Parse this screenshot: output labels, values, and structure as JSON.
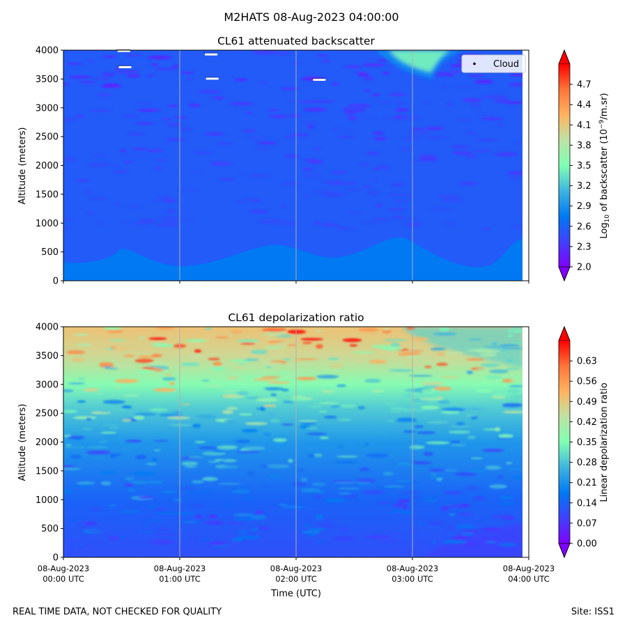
{
  "suptitle": "M2HATS 08-Aug-2023 04:00:00",
  "footer": {
    "left": "REAL TIME DATA, NOT CHECKED FOR QUALITY",
    "right": "Site: ISS1"
  },
  "chart_data": [
    {
      "type": "heatmap",
      "title": "CL61 attenuated backscatter",
      "xlabel": "",
      "ylabel": "Altitude (meters)",
      "ylim": [
        0,
        4000
      ],
      "yticks": [
        "0",
        "500",
        "1000",
        "1500",
        "2000",
        "2500",
        "3000",
        "3500",
        "4000"
      ],
      "x_hours_range": [
        0,
        4
      ],
      "grid_x_hours": [
        1,
        2,
        3
      ],
      "legend": {
        "label": "Cloud",
        "placement": "top-right"
      },
      "colorbar": {
        "label_prefix": "Log",
        "label_sub": "10",
        "label_mid": " of backscatter (10",
        "label_sup": "−9",
        "label_suffix": "/m.sr)",
        "range": [
          2.0,
          5.0
        ],
        "ticks": [
          "2.0",
          "2.3",
          "2.6",
          "2.9",
          "3.2",
          "3.5",
          "3.8",
          "4.1",
          "4.4",
          "4.7"
        ]
      },
      "background_value": 2.55,
      "surface_layer": {
        "value": 2.75,
        "top_altitude_m": 500
      },
      "features": [
        {
          "kind": "high_backscatter_plume",
          "t_start_h": 2.8,
          "t_end_h": 3.2,
          "alt_bottom_m": 3500,
          "alt_top_m": 4000,
          "value": 3.4
        },
        {
          "kind": "cloud_mask",
          "t_h": 0.52,
          "alt_m": 3980
        },
        {
          "kind": "cloud_mask",
          "t_h": 0.53,
          "alt_m": 3700
        },
        {
          "kind": "cloud_mask",
          "t_h": 1.27,
          "alt_m": 3920
        },
        {
          "kind": "cloud_mask",
          "t_h": 1.28,
          "alt_m": 3500
        },
        {
          "kind": "cloud_mask",
          "t_h": 2.2,
          "alt_m": 3480
        }
      ]
    },
    {
      "type": "heatmap",
      "title": "CL61 depolarization ratio",
      "xlabel": "Time (UTC)",
      "ylabel": "Altitude (meters)",
      "ylim": [
        0,
        4000
      ],
      "yticks": [
        "0",
        "500",
        "1000",
        "1500",
        "2000",
        "2500",
        "3000",
        "3500",
        "4000"
      ],
      "x_hours_range": [
        0,
        4
      ],
      "grid_x_hours": [
        1,
        2,
        3
      ],
      "xticks": [
        {
          "date": "08-Aug-2023",
          "time": "00:00 UTC"
        },
        {
          "date": "08-Aug-2023",
          "time": "01:00 UTC"
        },
        {
          "date": "08-Aug-2023",
          "time": "02:00 UTC"
        },
        {
          "date": "08-Aug-2023",
          "time": "03:00 UTC"
        },
        {
          "date": "08-Aug-2023",
          "time": "04:00 UTC"
        }
      ],
      "colorbar": {
        "label": "Linear depolarization ratio",
        "range": [
          0.0,
          0.7
        ],
        "ticks": [
          "0.00",
          "0.07",
          "0.14",
          "0.21",
          "0.28",
          "0.35",
          "0.42",
          "0.49",
          "0.56",
          "0.63"
        ]
      },
      "profile": [
        {
          "alt_m": 0,
          "value": 0.11
        },
        {
          "alt_m": 1000,
          "value": 0.14
        },
        {
          "alt_m": 2000,
          "value": 0.22
        },
        {
          "alt_m": 2600,
          "value": 0.29
        },
        {
          "alt_m": 3000,
          "value": 0.36
        },
        {
          "alt_m": 3500,
          "value": 0.46
        },
        {
          "alt_m": 4000,
          "value": 0.5
        }
      ]
    }
  ]
}
